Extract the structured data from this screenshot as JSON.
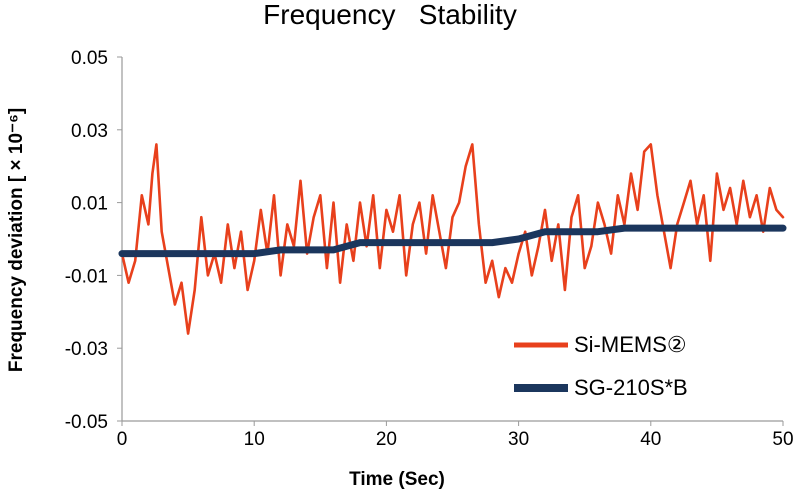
{
  "chart_data": {
    "type": "line",
    "title": "Frequency   Stability",
    "xlabel": "Time (Sec)",
    "ylabel": "Frequency deviation [ × 10⁻⁶]",
    "xlim": [
      0,
      50
    ],
    "ylim": [
      -0.05,
      0.05
    ],
    "x_ticks": [
      0,
      10,
      20,
      30,
      40,
      50
    ],
    "x_tick_labels": [
      "0",
      "10",
      "20",
      "30",
      "40",
      "50"
    ],
    "y_ticks": [
      0.05,
      0.03,
      0.01,
      -0.01,
      -0.03,
      -0.05
    ],
    "y_tick_labels": [
      "0.05",
      "0.03",
      "0.01",
      "-0.01",
      "-0.03",
      "-0.05"
    ],
    "grid": false,
    "legend_position": "bottom-right",
    "series": [
      {
        "name": "Si-MEMS②",
        "color": "#e8401c",
        "x": [
          0,
          0.5,
          1,
          1.5,
          2,
          2.3,
          2.6,
          3,
          3.5,
          4,
          4.5,
          5,
          5.5,
          6,
          6.5,
          7,
          7.5,
          8,
          8.5,
          9,
          9.5,
          10,
          10.5,
          11,
          11.5,
          12,
          12.5,
          13,
          13.5,
          14,
          14.5,
          15,
          15.5,
          16,
          16.5,
          17,
          17.5,
          18,
          18.5,
          19,
          19.5,
          20,
          20.5,
          21,
          21.5,
          22,
          22.5,
          23,
          23.5,
          24,
          24.5,
          25,
          25.5,
          26,
          26.5,
          27,
          27.5,
          28,
          28.5,
          29,
          29.5,
          30,
          30.5,
          31,
          31.5,
          32,
          32.5,
          33,
          33.5,
          34,
          34.5,
          35,
          35.5,
          36,
          36.5,
          37,
          37.5,
          38,
          38.5,
          39,
          39.5,
          40,
          40.5,
          41,
          41.5,
          42,
          42.5,
          43,
          43.5,
          44,
          44.5,
          45,
          45.5,
          46,
          46.5,
          47,
          47.5,
          48,
          48.5,
          49,
          49.5,
          50
        ],
        "values": [
          -0.004,
          -0.012,
          -0.006,
          0.012,
          0.004,
          0.018,
          0.026,
          0.002,
          -0.008,
          -0.018,
          -0.012,
          -0.026,
          -0.014,
          0.006,
          -0.01,
          -0.004,
          -0.012,
          0.004,
          -0.008,
          0.002,
          -0.014,
          -0.006,
          0.008,
          -0.004,
          0.012,
          -0.01,
          0.004,
          -0.002,
          0.016,
          -0.004,
          0.006,
          0.012,
          -0.008,
          0.01,
          -0.012,
          0.004,
          -0.006,
          0.01,
          -0.002,
          0.012,
          -0.008,
          0.008,
          0.002,
          0.012,
          -0.01,
          0.004,
          0.01,
          -0.004,
          0.012,
          0.002,
          -0.008,
          0.006,
          0.01,
          0.02,
          0.026,
          0.004,
          -0.012,
          -0.006,
          -0.016,
          -0.008,
          -0.012,
          -0.004,
          0.002,
          -0.01,
          -0.002,
          0.008,
          -0.006,
          0.004,
          -0.014,
          0.006,
          0.012,
          -0.008,
          -0.002,
          0.01,
          0.004,
          -0.004,
          0.012,
          0.004,
          0.018,
          0.008,
          0.024,
          0.026,
          0.012,
          0.002,
          -0.008,
          0.004,
          0.01,
          0.016,
          0.004,
          0.012,
          -0.006,
          0.018,
          0.008,
          0.014,
          0.004,
          0.016,
          0.006,
          0.012,
          0.002,
          0.014,
          0.008,
          0.006
        ]
      },
      {
        "name": "SG-210S*B",
        "color": "#1b365d",
        "x": [
          0,
          2,
          4,
          6,
          8,
          10,
          12,
          14,
          16,
          17,
          18,
          20,
          22,
          24,
          26,
          28,
          30,
          31,
          32,
          34,
          36,
          38,
          40,
          42,
          44,
          46,
          48,
          50
        ],
        "values": [
          -0.004,
          -0.004,
          -0.004,
          -0.004,
          -0.004,
          -0.004,
          -0.003,
          -0.003,
          -0.003,
          -0.002,
          -0.001,
          -0.001,
          -0.001,
          -0.001,
          -0.001,
          -0.001,
          0.0,
          0.001,
          0.002,
          0.002,
          0.002,
          0.003,
          0.003,
          0.003,
          0.003,
          0.003,
          0.003,
          0.003
        ]
      }
    ]
  }
}
